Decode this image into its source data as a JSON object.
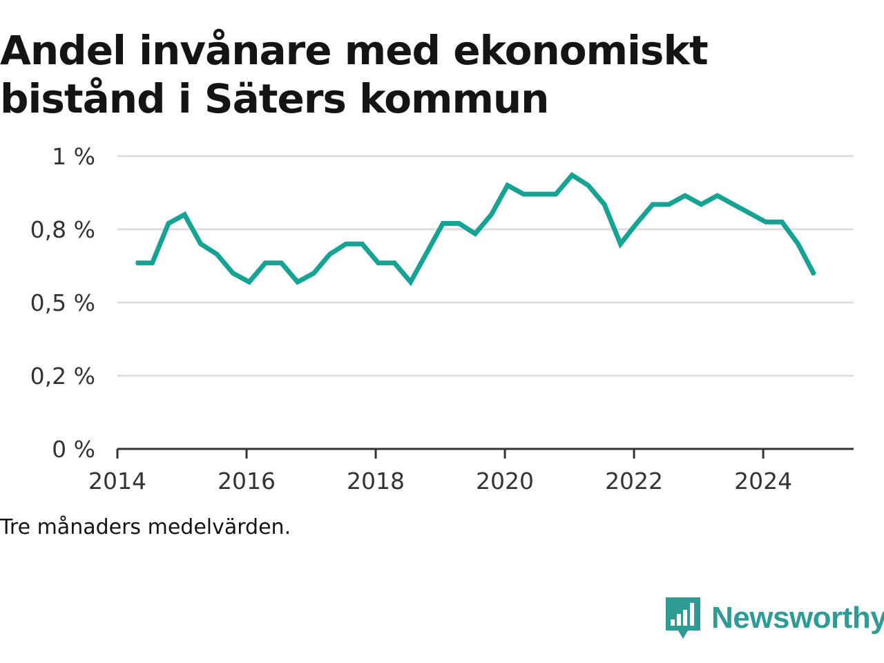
{
  "chart_data": {
    "type": "line",
    "title_lines": [
      "Andel invånare med ekonomiskt",
      "bistånd i Säters kommun"
    ],
    "xlabel": "",
    "ylabel": "",
    "note": "Tre månaders medelvärden.",
    "x_tick_labels": [
      "2014",
      "2016",
      "2018",
      "2020",
      "2022",
      "2024"
    ],
    "y_tick_labels": [
      "0 %",
      "0,2 %",
      "0,5 %",
      "0,8 %",
      "1 %"
    ],
    "y_tick_values": [
      0,
      0.25,
      0.5,
      0.75,
      1.0
    ],
    "xlim": [
      2014,
      2025.4
    ],
    "ylim": [
      0,
      1.0
    ],
    "grid": true,
    "line_color": "#16a394",
    "series": [
      {
        "x": [
          2014.29,
          2014.54,
          2014.79,
          2015.04,
          2015.29,
          2015.54,
          2015.79,
          2016.04,
          2016.29,
          2016.54,
          2016.79,
          2017.04,
          2017.29,
          2017.54,
          2017.79,
          2018.04,
          2018.29,
          2018.54,
          2018.79,
          2019.04,
          2019.29,
          2019.54,
          2019.79,
          2020.04,
          2020.29,
          2020.54,
          2020.79,
          2021.04,
          2021.29,
          2021.54,
          2021.79,
          2022.04,
          2022.29,
          2022.54,
          2022.79,
          2023.04,
          2023.29,
          2023.54,
          2023.79,
          2024.04,
          2024.29,
          2024.54,
          2024.79
        ],
        "y": [
          0.635,
          0.635,
          0.77,
          0.8,
          0.7,
          0.665,
          0.6,
          0.57,
          0.635,
          0.635,
          0.57,
          0.6,
          0.665,
          0.7,
          0.7,
          0.635,
          0.635,
          0.57,
          0.67,
          0.77,
          0.77,
          0.735,
          0.8,
          0.9,
          0.87,
          0.87,
          0.87,
          0.935,
          0.9,
          0.835,
          0.7,
          0.77,
          0.835,
          0.835,
          0.865,
          0.835,
          0.865,
          0.835,
          0.805,
          0.775,
          0.775,
          0.7,
          0.595
        ]
      }
    ]
  },
  "brand": {
    "name": "Newsworthy",
    "color": "#2e9c94",
    "logo_icon": "bar-chart-speech-bubble-icon"
  }
}
